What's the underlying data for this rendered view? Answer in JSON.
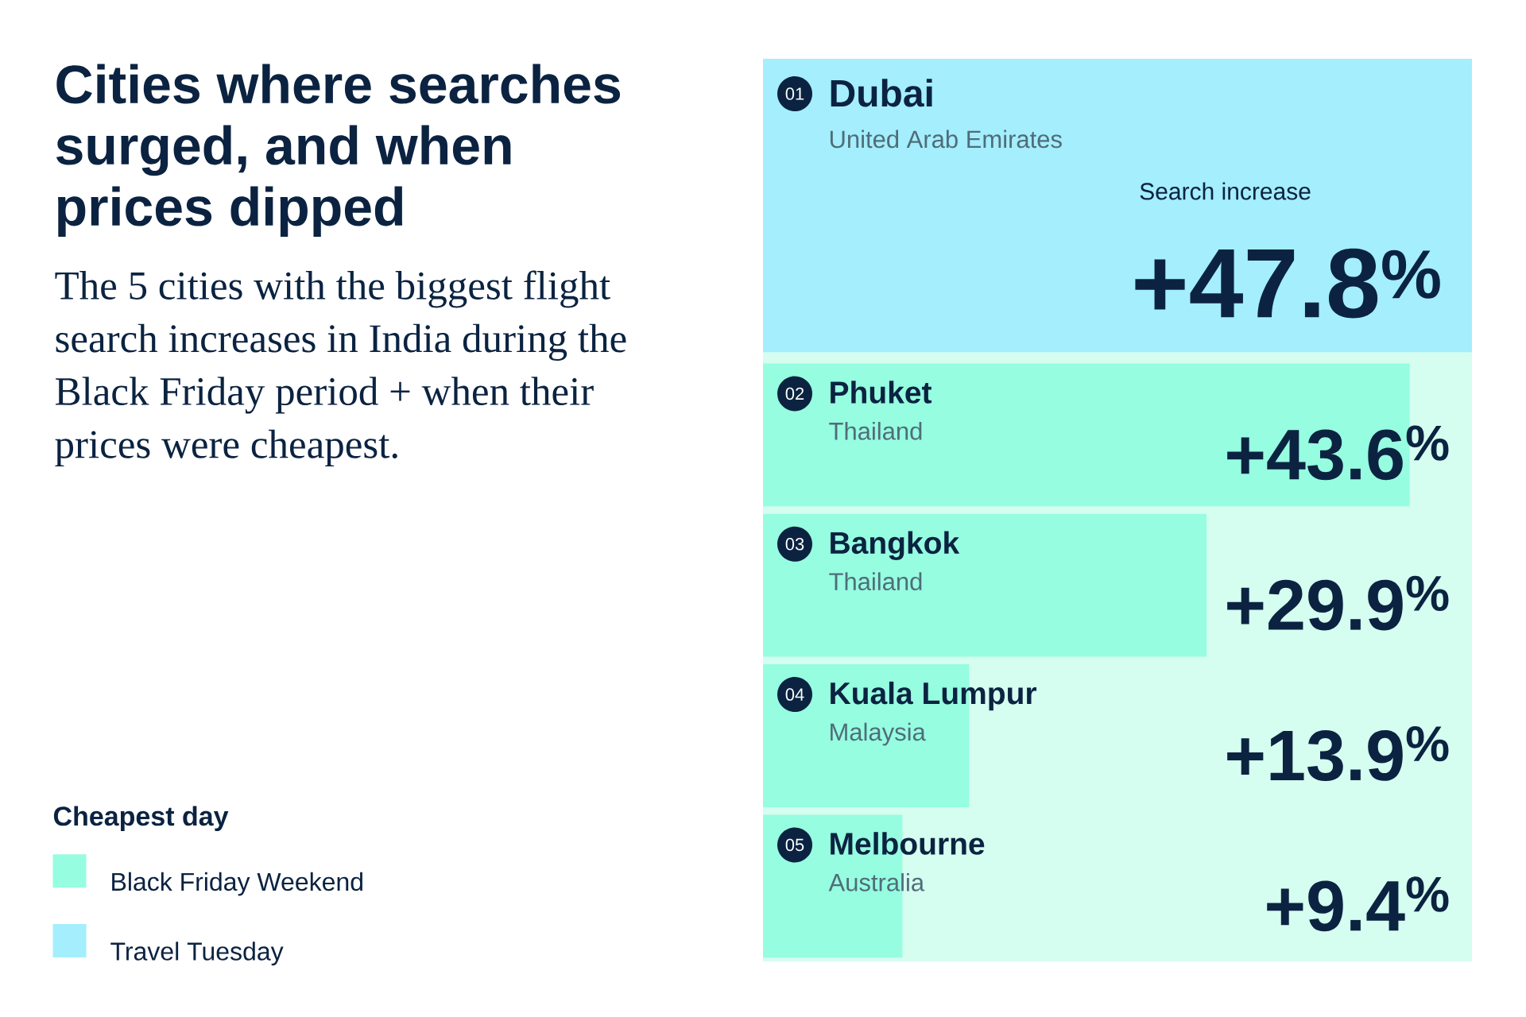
{
  "chart_data": {
    "type": "bar",
    "orientation": "horizontal",
    "title": "Cities where searches surged, and when prices dipped",
    "subtitle": "The 5 cities with the biggest flight search increases in India during the Black Friday period + when their prices were cheapest.",
    "legend_title": "Cheapest day",
    "categories": [
      "Dubai",
      "Phuket",
      "Bangkok",
      "Kuala Lumpur",
      "Melbourne"
    ],
    "series": [
      {
        "name": "Black Friday Weekend",
        "color": "#96fde0",
        "values": [
          null,
          43.6,
          29.9,
          13.9,
          9.4
        ],
        "value_labels": [
          null,
          "+43.6$^{%}$",
          "+29.9$^{%}$",
          "+13.9$^{%}$",
          "+9.4$^{%}$"
        ]
      },
      {
        "name": "Travel Tuesday",
        "color": "#a4eefd",
        "values": [
          47.8,
          null,
          null,
          null,
          null
        ],
        "value_labels": [
          "+47.8$^{%}$",
          null,
          null,
          null,
          null
        ]
      }
    ],
    "xlim": [
      0,
      47.8
    ],
    "tick_labels": "y",
    "legend": "left",
    "annotations": [
      "01",
      "United Arab Emirates",
      "02",
      "Thailand",
      "03",
      "Thailand",
      "04",
      "Malaysia",
      "05",
      "Australia",
      "Search increase"
    ]
  }
}
